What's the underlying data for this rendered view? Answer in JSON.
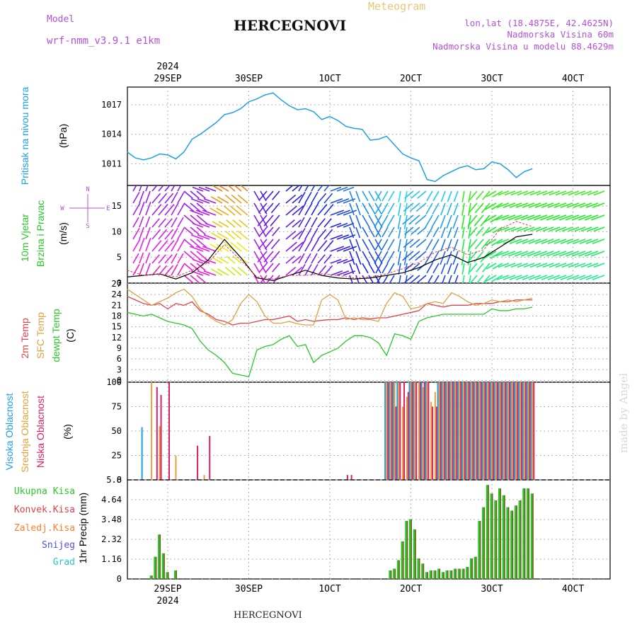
{
  "header": {
    "model_label": "Model",
    "model_name": "wrf-nmm_v3.9.1 e1km",
    "title": "HERCEGNOVI",
    "meteogram_label": "Meteogram",
    "lonlat": "lon,lat (18.4875E, 42.4625N)",
    "altitude": "Nadmorska Visina 60m",
    "model_altitude": "Nadmorska Visina u modelu 88.4629m"
  },
  "footer": {
    "station": "HERCEGNOVI",
    "credit": "made by Angel"
  },
  "colors": {
    "pressure": "#1ea0e6",
    "temp2m": "#e0414b",
    "sfc_temp": "#e0a040",
    "dewpoint": "#28c828",
    "cloud_high": "#1ea0e6",
    "cloud_mid": "#e6a03c",
    "cloud_low": "#dc1e64",
    "precip_total": "#28c828",
    "precip_conv": "#e0414b",
    "precip_frozen": "#ff7f2a",
    "snow": "#5050e6",
    "hail": "#28c8c8",
    "title": "#111111",
    "model_text": "#b450dc"
  },
  "x_axis": {
    "top_year": "2024",
    "bottom_year": "2024",
    "date_ticks": [
      "29SEP",
      "30SEP",
      "1OCT",
      "2OCT",
      "3OCT",
      "4OCT"
    ]
  },
  "panels": {
    "pressure": {
      "label": "Pritisak na nivou mora",
      "unit": "(hPa)",
      "ticks": [
        "1017",
        "1014",
        "1011"
      ]
    },
    "wind": {
      "label1": "10m Vjetar",
      "label2": "Brzina i Pravac",
      "unit": "(m/s)",
      "ticks": [
        "15",
        "10",
        "5",
        "0"
      ],
      "compass": {
        "n": "N",
        "s": "S",
        "e": "E",
        "w": "W"
      }
    },
    "temp": {
      "label1": "2m Temp",
      "label2": "SFC Temp",
      "label3": "dewpt Temp",
      "unit": "(C)",
      "ticks": [
        "27",
        "24",
        "21",
        "18",
        "15",
        "12",
        "9",
        "6",
        "3",
        "0"
      ]
    },
    "cloud": {
      "label1": "Visoka Oblacnost",
      "label2": "Srednja Oblacnost",
      "label3": "Niska Oblacnost",
      "unit": "(%)",
      "ticks": [
        "100",
        "75",
        "50",
        "25",
        "0"
      ]
    },
    "precip": {
      "label_total": "Ukupna Kisa",
      "label_conv": "Konvek.Kisa",
      "label_frozen": "Zaledj.Kisa",
      "label_snow": "Snijeg",
      "label_hail": "Grad",
      "unit": "1hr Precip (mm)",
      "ticks": [
        "5.8",
        "4.64",
        "3.48",
        "2.32",
        "1.16",
        "0"
      ]
    }
  },
  "chart_data": [
    {
      "type": "line",
      "title": "Pritisak na nivou mora",
      "ylabel": "(hPa)",
      "ylim": [
        1008.8,
        1018.8
      ],
      "x_unit": "days",
      "x": [
        -0.5,
        -0.4,
        -0.3,
        -0.2,
        -0.1,
        0,
        0.1,
        0.2,
        0.3,
        0.4,
        0.5,
        0.6,
        0.7,
        0.8,
        0.9,
        1.0,
        1.1,
        1.2,
        1.3,
        1.4,
        1.5,
        1.6,
        1.7,
        1.8,
        1.9,
        2.0,
        2.1,
        2.2,
        2.3,
        2.4,
        2.5,
        2.6,
        2.7,
        2.8,
        2.9,
        3.0,
        3.1,
        3.2,
        3.3,
        3.4,
        3.5,
        3.6,
        3.7,
        3.8,
        3.9,
        4.0,
        4.1,
        4.2,
        4.3,
        4.4,
        4.5
      ],
      "series": [
        {
          "name": "Pritisak",
          "color": "#1ea0e6",
          "values": [
            1012.2,
            1011.6,
            1011.4,
            1011.6,
            1012.0,
            1011.9,
            1011.5,
            1012.2,
            1013.5,
            1014.0,
            1014.6,
            1015.2,
            1016.0,
            1016.2,
            1016.6,
            1017.3,
            1017.6,
            1018.0,
            1018.2,
            1017.5,
            1016.9,
            1016.5,
            1016.6,
            1016.3,
            1015.5,
            1015.8,
            1015.4,
            1014.8,
            1014.6,
            1014.5,
            1013.4,
            1013.5,
            1013.8,
            1012.9,
            1012.0,
            1011.6,
            1011.3,
            1009.4,
            1009.2,
            1009.8,
            1010.2,
            1010.6,
            1010.8,
            1010.4,
            1010.5,
            1011.2,
            1011.0,
            1010.4,
            1009.6,
            1010.2,
            1010.5
          ]
        }
      ]
    },
    {
      "type": "line",
      "title": "10m Vjetar Brzina i Pravac",
      "ylabel": "(m/s)",
      "ylim": [
        0,
        19
      ],
      "x_unit": "days",
      "x": [
        -0.5,
        -0.3,
        -0.1,
        0.1,
        0.3,
        0.5,
        0.7,
        0.9,
        1.1,
        1.3,
        1.5,
        1.7,
        1.9,
        2.1,
        2.3,
        2.5,
        2.7,
        2.9,
        3.1,
        3.3,
        3.5,
        3.7,
        3.9,
        4.1,
        4.3,
        4.5
      ],
      "series": [
        {
          "name": "Brzina",
          "color": "#000000",
          "values": [
            1.2,
            1.5,
            1.8,
            0.8,
            2.0,
            4.5,
            8.5,
            5.0,
            1.0,
            0.5,
            1.5,
            2.5,
            1.5,
            1.0,
            0.8,
            1.0,
            1.5,
            2.0,
            3.0,
            4.5,
            5.5,
            4.0,
            5.0,
            7.0,
            9.0,
            9.5
          ]
        },
        {
          "name": "Udari",
          "color": "#e0414b",
          "values": [
            2.5,
            1.5,
            1.8,
            1.2,
            2.5,
            4.0,
            7.5,
            4.5,
            1.2,
            0.8,
            1.5,
            1.5,
            1.8,
            1.5,
            1.0,
            1.2,
            1.8,
            2.8,
            4.0,
            6.0,
            7.0,
            5.5,
            6.5,
            10.5,
            12.0,
            11.0
          ]
        }
      ],
      "wind_direction_deg": [
        300,
        290,
        310,
        300,
        40,
        200,
        210,
        220,
        60,
        130,
        320,
        300,
        310,
        340,
        70,
        60,
        120,
        100,
        140,
        120,
        110,
        100,
        130,
        150,
        160,
        160
      ]
    },
    {
      "type": "line",
      "title": "2m Temp / SFC Temp / dewpt Temp",
      "ylabel": "(C)",
      "ylim": [
        -0.5,
        27.2
      ],
      "x_unit": "days",
      "x": [
        -0.5,
        -0.4,
        -0.3,
        -0.2,
        -0.1,
        0,
        0.1,
        0.2,
        0.3,
        0.4,
        0.5,
        0.6,
        0.7,
        0.8,
        0.9,
        1.0,
        1.1,
        1.2,
        1.3,
        1.4,
        1.5,
        1.6,
        1.7,
        1.8,
        1.9,
        2.0,
        2.1,
        2.2,
        2.3,
        2.4,
        2.5,
        2.6,
        2.7,
        2.8,
        2.9,
        3.0,
        3.1,
        3.2,
        3.3,
        3.4,
        3.5,
        3.6,
        3.7,
        3.8,
        3.9,
        4.0,
        4.1,
        4.2,
        4.3,
        4.4,
        4.5
      ],
      "series": [
        {
          "name": "2m Temp",
          "color": "#e0414b",
          "values": [
            23.5,
            22.5,
            21.5,
            21.0,
            21.5,
            20.0,
            21.5,
            21.0,
            22.0,
            19.5,
            18.5,
            17.0,
            16.5,
            15.5,
            16.0,
            16.0,
            16.5,
            17.0,
            17.0,
            17.5,
            18.0,
            16.5,
            17.0,
            16.5,
            16.8,
            17.0,
            17.0,
            17.5,
            17.0,
            17.5,
            17.2,
            17.5,
            17.5,
            18.0,
            18.5,
            19.0,
            19.5,
            21.5,
            21.0,
            20.5,
            21.0,
            21.0,
            21.0,
            21.5,
            21.5,
            21.5,
            22.0,
            22.0,
            22.5,
            22.5,
            22.5
          ]
        },
        {
          "name": "SFC Temp",
          "color": "#e0a040",
          "values": [
            25.5,
            24.0,
            22.5,
            21.0,
            22.0,
            23.0,
            24.5,
            25.5,
            23.5,
            20.0,
            18.0,
            16.5,
            15.5,
            17.0,
            21.5,
            24.0,
            22.0,
            18.0,
            16.0,
            16.0,
            16.5,
            15.8,
            15.5,
            15.5,
            22.5,
            24.0,
            22.5,
            17.0,
            17.5,
            17.0,
            17.0,
            16.5,
            21.5,
            24.5,
            23.5,
            20.0,
            20.5,
            21.5,
            22.0,
            21.5,
            24.5,
            23.5,
            22.0,
            21.0,
            21.5,
            22.5,
            22.0,
            22.5,
            22.0,
            22.5,
            23.0
          ]
        },
        {
          "name": "dewpt Temp",
          "color": "#28c828",
          "values": [
            19.0,
            18.5,
            18.0,
            18.5,
            17.5,
            16.5,
            16.0,
            15.5,
            14.5,
            11.0,
            8.5,
            7.0,
            5.0,
            2.0,
            1.5,
            1.0,
            8.5,
            9.5,
            10.0,
            11.5,
            12.5,
            9.5,
            10.0,
            5.0,
            7.0,
            8.0,
            9.0,
            11.0,
            12.5,
            12.5,
            12.0,
            10.5,
            7.0,
            13.0,
            12.5,
            11.5,
            16.5,
            17.5,
            18.0,
            18.5,
            18.5,
            18.5,
            18.5,
            18.5,
            18.5,
            20.0,
            19.5,
            19.5,
            20.0,
            20.0,
            20.5
          ]
        }
      ]
    },
    {
      "type": "bar",
      "title": "Oblacnost",
      "ylabel": "(%)",
      "ylim": [
        0,
        100
      ],
      "x_unit": "days",
      "x": [
        -0.3,
        -0.2,
        -0.15,
        -0.1,
        -0.05,
        0,
        0.1,
        0.35,
        0.4,
        0.45,
        0.5,
        0.55,
        0.6,
        1.1,
        2.2,
        2.25,
        2.7,
        2.75,
        2.8,
        2.85,
        2.9,
        2.95,
        3.0,
        3.05,
        3.1,
        3.15,
        3.2,
        3.25,
        3.3,
        3.35,
        3.4,
        3.45,
        3.5,
        3.55,
        3.6,
        3.65,
        3.7,
        3.75,
        3.8,
        3.85,
        3.9,
        3.95,
        4.0,
        4.05,
        4.1,
        4.15,
        4.2,
        4.25,
        4.3,
        4.35,
        4.4,
        4.45,
        4.5
      ],
      "series": [
        {
          "name": "Visoka Oblacnost",
          "color": "#1ea0e6",
          "values": [
            54,
            0,
            0,
            0,
            0,
            0,
            0,
            0,
            0,
            0,
            0,
            0,
            0,
            0,
            0,
            0,
            100,
            100,
            100,
            100,
            0,
            0,
            100,
            100,
            0,
            100,
            100,
            0,
            0,
            100,
            100,
            100,
            100,
            100,
            100,
            100,
            100,
            100,
            100,
            100,
            100,
            100,
            100,
            100,
            100,
            100,
            100,
            100,
            100,
            100,
            100,
            100,
            100
          ]
        },
        {
          "name": "Srednja Oblacnost",
          "color": "#e6a03c",
          "values": [
            0,
            100,
            0,
            55,
            0,
            0,
            25,
            0,
            0,
            5,
            0,
            0,
            0,
            0,
            0,
            0,
            100,
            100,
            100,
            100,
            75,
            85,
            100,
            100,
            100,
            95,
            100,
            80,
            90,
            100,
            100,
            100,
            100,
            100,
            100,
            100,
            100,
            100,
            100,
            100,
            100,
            100,
            100,
            100,
            100,
            100,
            100,
            100,
            100,
            100,
            100,
            100,
            100
          ]
        },
        {
          "name": "Niska Oblacnost",
          "color": "#dc1e64",
          "values": [
            0,
            0,
            95,
            87,
            0,
            100,
            0,
            35,
            0,
            0,
            45,
            0,
            0,
            0,
            5,
            5,
            100,
            100,
            75,
            100,
            100,
            90,
            100,
            100,
            100,
            100,
            100,
            75,
            75,
            100,
            100,
            100,
            100,
            100,
            100,
            100,
            100,
            100,
            100,
            100,
            100,
            100,
            100,
            100,
            100,
            100,
            100,
            100,
            100,
            100,
            100,
            100,
            100
          ]
        }
      ]
    },
    {
      "type": "bar",
      "title": "1hr Precip",
      "ylabel": "(mm)",
      "ylim": [
        0,
        5.8
      ],
      "x_unit": "days",
      "x": [
        -0.2,
        -0.15,
        -0.1,
        -0.05,
        0,
        0.05,
        0.1,
        2.75,
        2.8,
        2.85,
        2.9,
        2.95,
        3.0,
        3.05,
        3.1,
        3.15,
        3.2,
        3.25,
        3.3,
        3.35,
        3.4,
        3.45,
        3.5,
        3.55,
        3.6,
        3.65,
        3.7,
        3.75,
        3.8,
        3.85,
        3.9,
        3.95,
        4.0,
        4.05,
        4.1,
        4.15,
        4.2,
        4.25,
        4.3,
        4.35,
        4.4,
        4.45,
        4.5
      ],
      "series": [
        {
          "name": "Ukupna Kisa",
          "color": "#28c828",
          "values": [
            0.2,
            1.3,
            2.6,
            1.5,
            0.4,
            0.0,
            0.5,
            0.5,
            0.6,
            1.1,
            2.2,
            3.4,
            3.5,
            2.9,
            1.2,
            0.9,
            0.4,
            0.5,
            0.5,
            0.6,
            0.4,
            0.5,
            0.5,
            0.6,
            0.6,
            0.6,
            0.7,
            1.2,
            1.3,
            3.4,
            4.2,
            5.5,
            5.0,
            4.6,
            5.3,
            4.9,
            4.2,
            4.0,
            4.3,
            4.6,
            5.3,
            5.3,
            5.0
          ]
        },
        {
          "name": "Konvek.Kisa",
          "color": "#e0414b",
          "values": [
            0.1,
            0.3,
            0.5,
            0.3,
            0.1,
            0.0,
            0.1,
            0.1,
            0.1,
            0.2,
            0.3,
            0.5,
            0.6,
            0.4,
            0.2,
            0.1,
            0.1,
            0.1,
            0.1,
            0.1,
            0.1,
            0.1,
            0.1,
            0.1,
            0.1,
            0.1,
            0.2,
            0.3,
            0.3,
            0.8,
            1.0,
            1.5,
            1.3,
            1.1,
            1.4,
            1.2,
            1.0,
            0.9,
            1.0,
            1.2,
            1.4,
            1.4,
            1.2
          ]
        }
      ]
    }
  ]
}
